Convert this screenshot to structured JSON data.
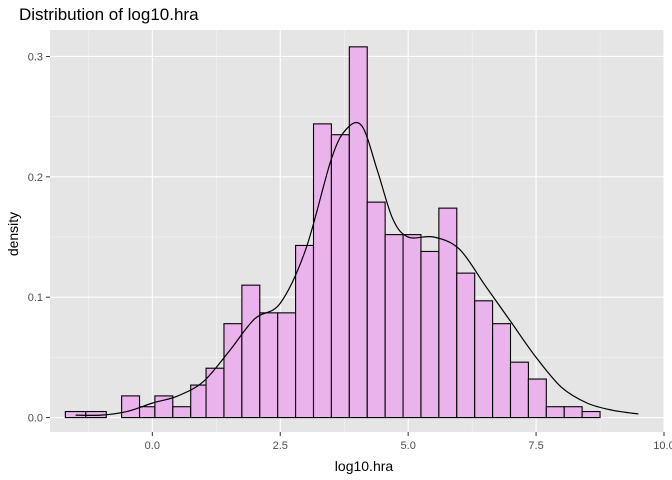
{
  "colors": {
    "panel_background": "#e5e5e5",
    "grid_major": "#ffffff",
    "bar_fill": "#ebb3eb",
    "bar_outline": "#000000",
    "density_line": "#000000"
  },
  "chart_data": {
    "type": "bar",
    "subtype": "histogram-with-density",
    "title": "Distribution of log10.hra",
    "xlabel": "log10.hra",
    "ylabel": "density",
    "xlim": [
      -2.0,
      10.0
    ],
    "ylim": [
      -0.012,
      0.322
    ],
    "xticks": [
      0.0,
      2.5,
      5.0,
      7.5,
      10.0
    ],
    "xtick_labels": [
      "0.0",
      "2.5",
      "5.0",
      "7.5",
      "10.0"
    ],
    "yticks": [
      0.0,
      0.1,
      0.2,
      0.3
    ],
    "ytick_labels": [
      "0.0",
      "0.1",
      "0.2",
      "0.3"
    ],
    "grid": true,
    "bins": [
      {
        "start": -1.7,
        "end": -1.3,
        "density": 0.005
      },
      {
        "start": -1.3,
        "end": -0.9,
        "density": 0.005
      },
      {
        "start": -0.9,
        "end": -0.6,
        "density": 0.0
      },
      {
        "start": -0.6,
        "end": -0.25,
        "density": 0.018
      },
      {
        "start": -0.25,
        "end": 0.05,
        "density": 0.009
      },
      {
        "start": 0.05,
        "end": 0.4,
        "density": 0.018
      },
      {
        "start": 0.4,
        "end": 0.75,
        "density": 0.009
      },
      {
        "start": 0.75,
        "end": 1.05,
        "density": 0.027
      },
      {
        "start": 1.05,
        "end": 1.4,
        "density": 0.041
      },
      {
        "start": 1.4,
        "end": 1.75,
        "density": 0.078
      },
      {
        "start": 1.75,
        "end": 2.1,
        "density": 0.11
      },
      {
        "start": 2.1,
        "end": 2.45,
        "density": 0.087
      },
      {
        "start": 2.45,
        "end": 2.8,
        "density": 0.087
      },
      {
        "start": 2.8,
        "end": 3.15,
        "density": 0.143
      },
      {
        "start": 3.15,
        "end": 3.5,
        "density": 0.244
      },
      {
        "start": 3.5,
        "end": 3.85,
        "density": 0.235
      },
      {
        "start": 3.85,
        "end": 4.2,
        "density": 0.308
      },
      {
        "start": 4.2,
        "end": 4.55,
        "density": 0.179
      },
      {
        "start": 4.55,
        "end": 4.9,
        "density": 0.152
      },
      {
        "start": 4.9,
        "end": 5.25,
        "density": 0.152
      },
      {
        "start": 5.25,
        "end": 5.6,
        "density": 0.138
      },
      {
        "start": 5.6,
        "end": 5.95,
        "density": 0.174
      },
      {
        "start": 5.95,
        "end": 6.3,
        "density": 0.12
      },
      {
        "start": 6.3,
        "end": 6.65,
        "density": 0.097
      },
      {
        "start": 6.65,
        "end": 7.0,
        "density": 0.078
      },
      {
        "start": 7.0,
        "end": 7.35,
        "density": 0.046
      },
      {
        "start": 7.35,
        "end": 7.7,
        "density": 0.032
      },
      {
        "start": 7.7,
        "end": 8.05,
        "density": 0.009
      },
      {
        "start": 8.05,
        "end": 8.4,
        "density": 0.009
      },
      {
        "start": 8.4,
        "end": 8.75,
        "density": 0.005
      }
    ],
    "density_curve": {
      "x": [
        -1.5,
        -1.0,
        -0.5,
        0.0,
        0.5,
        1.0,
        1.5,
        2.0,
        2.5,
        3.0,
        3.5,
        3.8,
        4.1,
        4.4,
        4.7,
        5.0,
        5.5,
        6.0,
        6.5,
        7.0,
        7.5,
        8.0,
        8.5,
        9.0,
        9.5
      ],
      "y": [
        0.002,
        0.002,
        0.005,
        0.012,
        0.018,
        0.03,
        0.055,
        0.082,
        0.095,
        0.14,
        0.215,
        0.24,
        0.242,
        0.205,
        0.165,
        0.15,
        0.15,
        0.14,
        0.11,
        0.08,
        0.05,
        0.025,
        0.012,
        0.006,
        0.003
      ]
    }
  }
}
